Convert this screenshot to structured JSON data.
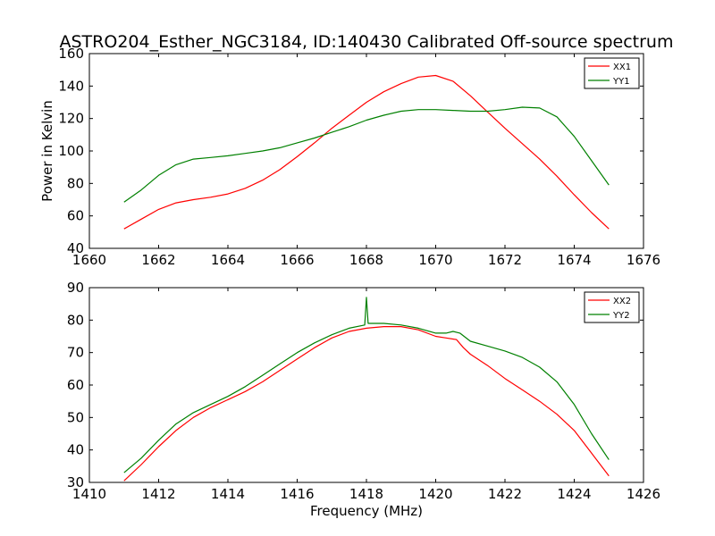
{
  "figure": {
    "title": "ASTRO204_Esther_NGC3184, ID:140430 Calibrated Off-source spectrum"
  },
  "chart_data": [
    {
      "type": "line",
      "xlabel": "",
      "ylabel": "Power in Kelvin",
      "xlim": [
        1660,
        1676
      ],
      "ylim": [
        40,
        160
      ],
      "xticks": [
        "1660",
        "1662",
        "1664",
        "1666",
        "1668",
        "1670",
        "1672",
        "1674",
        "1676"
      ],
      "yticks": [
        "40",
        "60",
        "80",
        "100",
        "120",
        "140",
        "160"
      ],
      "grid": false,
      "legend_position": "top-right",
      "series": [
        {
          "name": "XX1",
          "color": "#ff0000",
          "x": [
            1661.0,
            1661.5,
            1662.0,
            1662.5,
            1663.0,
            1663.5,
            1664.0,
            1664.5,
            1665.0,
            1665.5,
            1666.0,
            1666.5,
            1667.0,
            1667.5,
            1668.0,
            1668.5,
            1669.0,
            1669.5,
            1670.0,
            1670.5,
            1671.0,
            1671.5,
            1672.0,
            1672.5,
            1673.0,
            1673.5,
            1674.0,
            1674.5,
            1675.0
          ],
          "values": [
            52,
            58,
            64,
            68,
            70,
            71.5,
            73.5,
            77,
            82,
            88.5,
            96.5,
            105,
            114,
            122,
            130,
            136.5,
            141.5,
            145.5,
            146.5,
            143,
            134,
            124,
            114,
            104.5,
            95,
            84.5,
            73,
            62,
            52
          ]
        },
        {
          "name": "YY1",
          "color": "#008000",
          "x": [
            1661.0,
            1661.5,
            1662.0,
            1662.5,
            1663.0,
            1663.5,
            1664.0,
            1664.5,
            1665.0,
            1665.5,
            1666.0,
            1666.5,
            1667.0,
            1667.5,
            1668.0,
            1668.5,
            1669.0,
            1669.5,
            1670.0,
            1670.5,
            1671.0,
            1671.5,
            1672.0,
            1672.5,
            1673.0,
            1673.5,
            1674.0,
            1674.5,
            1675.0
          ],
          "values": [
            68.5,
            76,
            85,
            91.5,
            95,
            96,
            97,
            98.5,
            100,
            102,
            105,
            108,
            111.5,
            115,
            119,
            122,
            124.5,
            125.5,
            125.5,
            125,
            124.5,
            124.5,
            125.5,
            127,
            126.5,
            121,
            109,
            94,
            79
          ]
        }
      ]
    },
    {
      "type": "line",
      "xlabel": "Frequency (MHz)",
      "ylabel": "",
      "xlim": [
        1410,
        1426
      ],
      "ylim": [
        30,
        90
      ],
      "xticks": [
        "1410",
        "1412",
        "1414",
        "1416",
        "1418",
        "1420",
        "1422",
        "1424",
        "1426"
      ],
      "yticks": [
        "30",
        "40",
        "50",
        "60",
        "70",
        "80",
        "90"
      ],
      "grid": false,
      "legend_position": "top-right",
      "series": [
        {
          "name": "XX2",
          "color": "#ff0000",
          "x": [
            1411.0,
            1411.5,
            1412.0,
            1412.5,
            1413.0,
            1413.5,
            1414.0,
            1414.5,
            1415.0,
            1415.5,
            1416.0,
            1416.5,
            1417.0,
            1417.5,
            1418.0,
            1418.5,
            1419.0,
            1419.5,
            1420.0,
            1420.3,
            1420.6,
            1420.8,
            1421.0,
            1421.5,
            1422.0,
            1422.5,
            1423.0,
            1423.5,
            1424.0,
            1424.5,
            1425.0
          ],
          "values": [
            30.5,
            35.5,
            41,
            46,
            50,
            53,
            55.5,
            58,
            61,
            64.5,
            68,
            71.5,
            74.5,
            76.5,
            77.5,
            78,
            78,
            77,
            75,
            74.5,
            74,
            71.5,
            69.5,
            66,
            62,
            58.5,
            55,
            51,
            46,
            39,
            32
          ]
        },
        {
          "name": "YY2",
          "color": "#008000",
          "x": [
            1411.0,
            1411.5,
            1412.0,
            1412.5,
            1413.0,
            1413.5,
            1414.0,
            1414.5,
            1415.0,
            1415.5,
            1416.0,
            1416.5,
            1417.0,
            1417.5,
            1417.95,
            1418.0,
            1418.05,
            1418.5,
            1419.0,
            1419.5,
            1420.0,
            1420.3,
            1420.5,
            1420.7,
            1421.0,
            1421.5,
            1422.0,
            1422.5,
            1423.0,
            1423.5,
            1424.0,
            1424.5,
            1425.0
          ],
          "values": [
            33,
            37.5,
            43,
            48,
            51.5,
            54,
            56.5,
            59.5,
            63,
            66.5,
            70,
            73,
            75.5,
            77.5,
            78.5,
            87,
            79,
            79,
            78.5,
            77.5,
            76,
            76,
            76.5,
            76,
            73.5,
            72,
            70.5,
            68.5,
            65.5,
            61,
            54,
            45,
            37
          ]
        }
      ]
    }
  ]
}
